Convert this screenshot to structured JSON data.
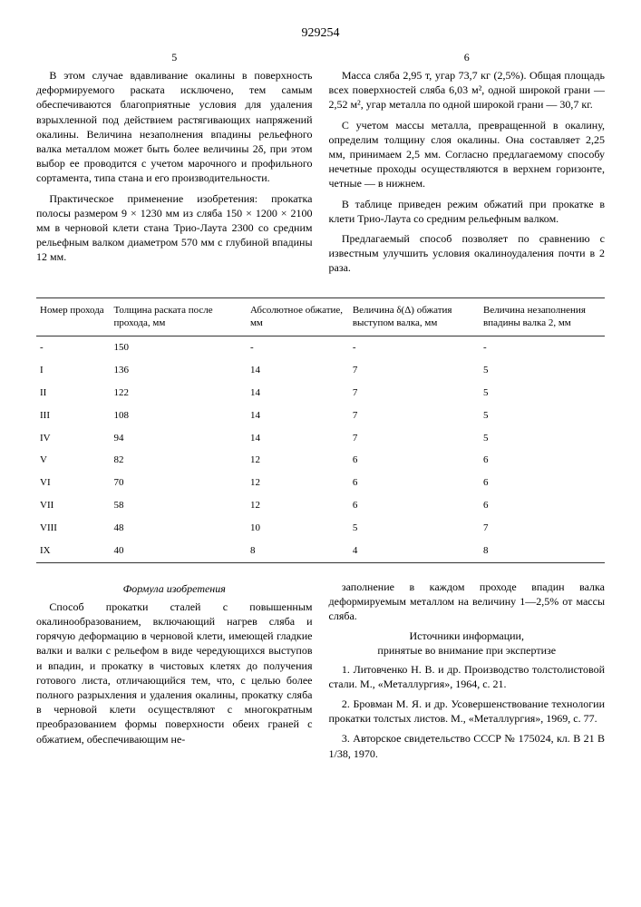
{
  "doc_number": "929254",
  "left_col_num": "5",
  "right_col_num": "6",
  "left_paragraphs": [
    "В этом случае вдавливание окалины в поверхность деформируемого раската исключено, тем самым обеспечиваются благоприятные условия для удаления взрыхленной под действием растягивающих напряжений окалины. Величина незаполнения впадины рельефного валка металлом может быть более величины 2δ, при этом выбор ее проводится с учетом марочного и профильного сортамента, типа стана и его производительности.",
    "Практическое применение изобретения: прокатка полосы размером 9 × 1230 мм из сляба 150 × 1200 × 2100 мм в черновой клети стана Трио-Лаута 2300 со средним рельефным валком диаметром 570 мм с глубиной впадины 12 мм."
  ],
  "right_paragraphs": [
    "Масса сляба 2,95 т, угар 73,7 кг (2,5%). Общая площадь всех поверхностей сляба 6,03 м², одной широкой грани — 2,52 м², угар металла по одной широкой грани — 30,7 кг.",
    "С учетом массы металла, превращенной в окалину, определим толщину слоя окалины. Она составляет 2,25 мм, принимаем 2,5 мм. Согласно предлагаемому способу нечетные проходы осуществляются в верхнем горизонте, четные — в нижнем.",
    "В таблице приведен режим обжатий при прокатке в клети Трио-Лаута со средним рельефным валком.",
    "Предлагаемый способ позволяет по сравнению с известным улучшить условия окалиноудаления почти в 2 раза."
  ],
  "table": {
    "headers": [
      "Номер прохода",
      "Толщина раската после прохода, мм",
      "Абсолютное обжатие, мм",
      "Величина δ(Δ) обжатия выступом валка, мм",
      "Величина незаполнения впадины валка 2, мм"
    ],
    "rows": [
      [
        "-",
        "150",
        "-",
        "-",
        "-"
      ],
      [
        "I",
        "136",
        "14",
        "7",
        "5"
      ],
      [
        "II",
        "122",
        "14",
        "7",
        "5"
      ],
      [
        "III",
        "108",
        "14",
        "7",
        "5"
      ],
      [
        "IV",
        "94",
        "14",
        "7",
        "5"
      ],
      [
        "V",
        "82",
        "12",
        "6",
        "6"
      ],
      [
        "VI",
        "70",
        "12",
        "6",
        "6"
      ],
      [
        "VII",
        "58",
        "12",
        "6",
        "6"
      ],
      [
        "VIII",
        "48",
        "10",
        "5",
        "7"
      ],
      [
        "IX",
        "40",
        "8",
        "4",
        "8"
      ]
    ]
  },
  "formula_title": "Формула изобретения",
  "formula_text": "Способ прокатки сталей с повышенным окалинообразованием, включающий нагрев сляба и горячую деформацию в черновой клети, имеющей гладкие валки и валки с рельефом в виде чередующихся выступов и впадин, и прокатку в чистовых клетях до получения готового листа, отличающийся тем, что, с целью более полного разрыхления и удаления окалины, прокатку сляба в черновой клети осуществляют с многократным преобразованием формы поверхности обеих граней с обжатием, обеспечивающим не-",
  "formula_text_cont": "заполнение в каждом проходе впадин валка деформируемым металлом на величину 1—2,5% от массы сляба.",
  "sources_title": "Источники информации,\nпринятые во внимание при экспертизе",
  "sources": [
    "1. Литовченко Н. В. и др. Производство толстолистовой стали. М., «Металлургия», 1964, с. 21.",
    "2. Бровман М. Я. и др. Усовершенствование технологии прокатки толстых листов. М., «Металлургия», 1969, с. 77.",
    "3. Авторское свидетельство СССР № 175024, кл. В 21 В 1/38, 1970."
  ]
}
